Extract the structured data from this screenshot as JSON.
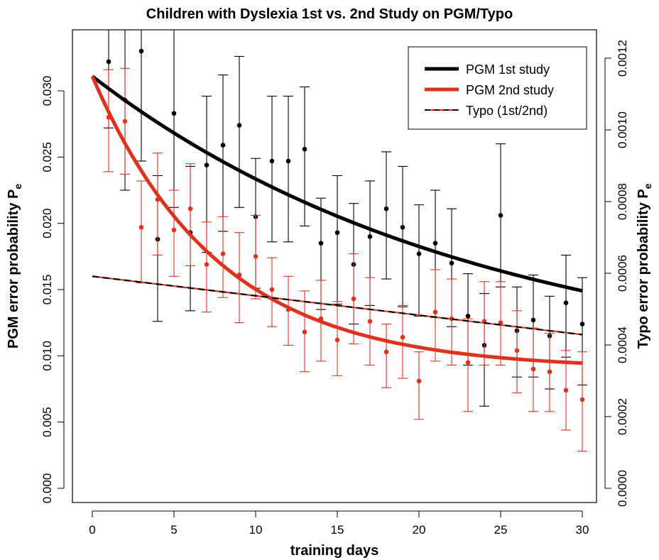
{
  "chart_data": {
    "type": "scatter",
    "title": "Children with Dyslexia 1st vs. 2nd Study on PGM/Typo",
    "xlabel": "training days",
    "ylabel_left": "PGM error probability P",
    "ylabel_left_sub": "e",
    "ylabel_right": "Typo error probability P",
    "ylabel_right_sub": "e",
    "xlim": [
      0,
      30
    ],
    "ylim_left": [
      0,
      0.033
    ],
    "ylim_right": [
      0,
      0.00124
    ],
    "x_ticks": [
      0,
      5,
      10,
      15,
      20,
      25,
      30
    ],
    "x_tick_labels": [
      "0",
      "5",
      "10",
      "15",
      "20",
      "25",
      "30"
    ],
    "y_left_ticks": [
      0,
      0.005,
      0.01,
      0.015,
      0.02,
      0.025,
      0.03
    ],
    "y_left_tick_labels": [
      "0.000",
      "0.005",
      "0.010",
      "0.015",
      "0.020",
      "0.025",
      "0.030"
    ],
    "y_right_ticks": [
      0,
      0.0002,
      0.0004,
      0.0006,
      0.0008,
      0.001,
      0.0012
    ],
    "y_right_tick_labels": [
      "0.0000",
      "0.0002",
      "0.0004",
      "0.0006",
      "0.0008",
      "0.0010",
      "0.0012"
    ],
    "legend": {
      "position": "top-right",
      "entries": [
        {
          "label": "PGM 1st study",
          "color": "#000000",
          "style": "solid-thick"
        },
        {
          "label": "PGM 2nd study",
          "color": "#e0301e",
          "style": "solid-thick"
        },
        {
          "label": "Typo (1st/2nd)",
          "color": "#000000",
          "color2": "#e0301e",
          "style": "dashed-double"
        }
      ]
    },
    "series": [
      {
        "name": "PGM 1st study",
        "color": "#000000",
        "kind": "points_with_errorbars",
        "x": [
          1,
          2,
          3,
          4,
          5,
          6,
          7,
          8,
          9,
          10,
          11,
          12,
          13,
          14,
          15,
          16,
          17,
          18,
          19,
          20,
          21,
          22,
          23,
          24,
          25,
          26,
          27,
          28,
          29,
          30
        ],
        "y": [
          0.0322,
          0.0293,
          0.033,
          0.0188,
          0.0283,
          0.0193,
          0.0244,
          0.0259,
          0.0274,
          0.0205,
          0.0247,
          0.0247,
          0.0256,
          0.0185,
          0.0193,
          0.0169,
          0.019,
          0.0211,
          0.0197,
          0.0177,
          0.0185,
          0.017,
          0.013,
          0.0108,
          0.0206,
          0.0119,
          0.0127,
          0.0115,
          0.014,
          0.0124
        ],
        "y_low": [
          0.0272,
          0.0225,
          0.0247,
          0.0126,
          0.0212,
          0.0134,
          0.0178,
          0.0194,
          0.0212,
          0.0151,
          0.0186,
          0.0186,
          0.0198,
          0.0135,
          0.0139,
          0.0124,
          0.0138,
          0.0158,
          0.0137,
          0.013,
          0.0129,
          0.0122,
          0.0093,
          0.0062,
          0.0152,
          0.0084,
          0.0084,
          0.0075,
          0.0099,
          0.0078
        ],
        "y_high": [
          0.0365,
          0.0365,
          0.0365,
          0.0236,
          0.0365,
          0.0243,
          0.0296,
          0.0312,
          0.0326,
          0.0249,
          0.0296,
          0.0296,
          0.0303,
          0.0219,
          0.0236,
          0.0215,
          0.0232,
          0.0254,
          0.0243,
          0.0214,
          0.0225,
          0.0211,
          0.0162,
          0.0147,
          0.026,
          0.0152,
          0.0161,
          0.0145,
          0.0176,
          0.0159
        ]
      },
      {
        "name": "PGM 2nd study",
        "color": "#e0301e",
        "kind": "points_with_errorbars",
        "x": [
          1,
          2,
          3,
          4,
          5,
          6,
          7,
          8,
          9,
          10,
          11,
          12,
          13,
          14,
          15,
          16,
          17,
          18,
          19,
          20,
          21,
          22,
          23,
          24,
          25,
          26,
          27,
          28,
          29,
          30
        ],
        "y": [
          0.028,
          0.0277,
          0.0197,
          0.0218,
          0.0195,
          0.0211,
          0.0169,
          0.0177,
          0.0161,
          0.0175,
          0.015,
          0.0135,
          0.0118,
          0.0128,
          0.0112,
          0.0143,
          0.0126,
          0.0103,
          0.0114,
          0.0081,
          0.0133,
          0.0128,
          0.0095,
          0.0126,
          0.0125,
          0.0104,
          0.009,
          0.0088,
          0.0074,
          0.0067
        ],
        "y_low": [
          0.0239,
          0.0237,
          0.0155,
          0.0176,
          0.016,
          0.0168,
          0.0133,
          0.0144,
          0.0125,
          0.0143,
          0.0122,
          0.0108,
          0.0088,
          0.0096,
          0.0085,
          0.0109,
          0.0093,
          0.0076,
          0.0083,
          0.0052,
          0.0096,
          0.0093,
          0.0058,
          0.0093,
          0.0093,
          0.0072,
          0.0058,
          0.0058,
          0.0044,
          0.0028
        ],
        "y_high": [
          0.0316,
          0.0317,
          0.0232,
          0.0253,
          0.0225,
          0.0245,
          0.0201,
          0.0205,
          0.0193,
          0.0206,
          0.0174,
          0.016,
          0.0149,
          0.0157,
          0.0141,
          0.0177,
          0.0159,
          0.0124,
          0.0138,
          0.0103,
          0.0165,
          0.0158,
          0.0128,
          0.0156,
          0.0156,
          0.0134,
          0.0121,
          0.0117,
          0.0104,
          0.0103
        ]
      },
      {
        "name": "PGM 1st study",
        "color": "#000000",
        "kind": "fit_curve",
        "model": "exp",
        "y0": 0.0311,
        "ymin": 0.0085,
        "rate": 0.042
      },
      {
        "name": "PGM 2nd study",
        "color": "#e0301e",
        "kind": "fit_curve",
        "model": "exp",
        "y0": 0.0311,
        "ymin": 0.009,
        "rate": 0.13
      },
      {
        "name": "Typo (1st/2nd)",
        "color": "#000000",
        "color2": "#e0301e",
        "kind": "fit_line",
        "x": [
          0,
          30
        ],
        "y": [
          0.016,
          0.0116
        ]
      }
    ]
  }
}
